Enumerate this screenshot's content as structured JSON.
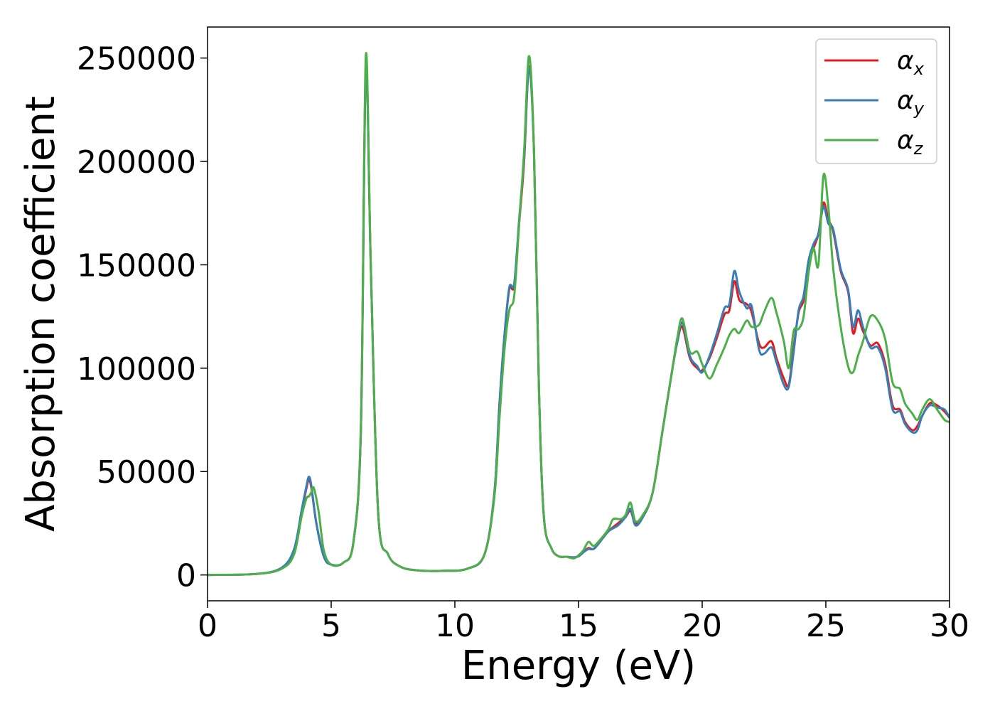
{
  "chart_data": {
    "type": "line",
    "xlabel": "Energy (eV)",
    "ylabel": "Absorption coefficient",
    "xlim": [
      0,
      30
    ],
    "ylim": [
      -12500,
      265000
    ],
    "xticks": [
      0,
      5,
      10,
      15,
      20,
      25,
      30
    ],
    "yticks": [
      0,
      50000,
      100000,
      150000,
      200000,
      250000
    ],
    "grid": false,
    "legend_position": "top-right",
    "series": [
      {
        "name": "α",
        "name_sub": "x",
        "color": "#e41a1c",
        "x": [
          0,
          2,
          3,
          3.5,
          3.8,
          4.0,
          4.1,
          4.2,
          4.4,
          4.7,
          5.0,
          5.5,
          5.9,
          6.2,
          6.4,
          6.6,
          6.9,
          7.3,
          7.8,
          8.5,
          9.5,
          10.5,
          11.2,
          11.6,
          11.8,
          12.0,
          12.2,
          12.4,
          12.6,
          12.8,
          13.0,
          13.2,
          13.4,
          13.6,
          13.9,
          14.2,
          14.5,
          14.8,
          15.0,
          15.2,
          15.4,
          15.6,
          15.8,
          16.2,
          16.6,
          16.9,
          17.1,
          17.3,
          17.6,
          18.0,
          18.4,
          18.8,
          19.0,
          19.2,
          19.5,
          19.8,
          20.0,
          20.3,
          20.6,
          20.9,
          21.1,
          21.3,
          21.5,
          21.8,
          22.0,
          22.3,
          22.5,
          22.8,
          23.0,
          23.3,
          23.5,
          23.7,
          23.9,
          24.1,
          24.3,
          24.5,
          24.7,
          24.9,
          25.1,
          25.3,
          25.6,
          25.9,
          26.1,
          26.3,
          26.5,
          26.8,
          27.1,
          27.4,
          27.7,
          28.0,
          28.2,
          28.5,
          28.7,
          28.9,
          29.2,
          29.5,
          29.8,
          30
        ],
        "y": [
          0,
          500,
          3500,
          12000,
          30000,
          42000,
          46000,
          42000,
          25000,
          9000,
          5000,
          6000,
          16000,
          70000,
          246000,
          150000,
          30000,
          10000,
          4000,
          2200,
          2000,
          3000,
          10000,
          40000,
          82000,
          115000,
          138000,
          140000,
          170000,
          200000,
          246000,
          205000,
          90000,
          28000,
          13000,
          9000,
          8800,
          8500,
          9000,
          11000,
          13000,
          12500,
          15000,
          21000,
          25000,
          28000,
          31000,
          25000,
          28000,
          40000,
          70000,
          100000,
          113000,
          120000,
          105000,
          100000,
          99000,
          105000,
          115000,
          126000,
          128000,
          142000,
          133000,
          131000,
          127000,
          112000,
          110000,
          113000,
          105000,
          95000,
          92000,
          110000,
          127000,
          133000,
          150000,
          158000,
          165000,
          180000,
          172000,
          166000,
          147000,
          137000,
          117000,
          124000,
          118000,
          111000,
          112000,
          102000,
          82000,
          80000,
          74000,
          70000,
          72000,
          77000,
          83000,
          82000,
          79000,
          76000
        ]
      },
      {
        "name": "α",
        "name_sub": "y",
        "color": "#377eb8",
        "x": [
          0,
          2,
          3,
          3.5,
          3.8,
          4.0,
          4.1,
          4.2,
          4.4,
          4.7,
          5.0,
          5.5,
          5.9,
          6.2,
          6.4,
          6.6,
          6.9,
          7.3,
          7.8,
          8.5,
          9.5,
          10.5,
          11.2,
          11.6,
          11.8,
          12.0,
          12.2,
          12.4,
          12.6,
          12.8,
          13.0,
          13.2,
          13.4,
          13.6,
          13.9,
          14.2,
          14.5,
          14.8,
          15.0,
          15.2,
          15.4,
          15.6,
          15.8,
          16.2,
          16.6,
          16.9,
          17.1,
          17.3,
          17.6,
          18.0,
          18.4,
          18.8,
          19.0,
          19.2,
          19.5,
          19.8,
          20.0,
          20.3,
          20.6,
          20.9,
          21.1,
          21.3,
          21.5,
          21.8,
          22.0,
          22.3,
          22.5,
          22.8,
          23.0,
          23.3,
          23.5,
          23.7,
          23.9,
          24.1,
          24.3,
          24.5,
          24.7,
          24.9,
          25.1,
          25.3,
          25.6,
          25.9,
          26.1,
          26.3,
          26.5,
          26.8,
          27.1,
          27.4,
          27.7,
          28.0,
          28.2,
          28.5,
          28.7,
          28.9,
          29.2,
          29.5,
          29.8,
          30
        ],
        "y": [
          0,
          500,
          3500,
          12500,
          31000,
          43000,
          47500,
          43000,
          25000,
          9000,
          5000,
          6000,
          16000,
          70000,
          244000,
          150000,
          30000,
          10000,
          4000,
          2200,
          2000,
          3000,
          10000,
          40000,
          82000,
          115000,
          139000,
          141000,
          172000,
          202000,
          245000,
          204000,
          90000,
          28000,
          13000,
          9000,
          8800,
          8500,
          9000,
          11000,
          12500,
          12500,
          15000,
          21000,
          24000,
          28000,
          32000,
          24000,
          28000,
          40000,
          70000,
          100000,
          113000,
          122000,
          106000,
          101000,
          98000,
          106000,
          117000,
          129000,
          131000,
          147000,
          137000,
          129000,
          130000,
          109000,
          107000,
          110000,
          103000,
          92000,
          91000,
          108000,
          128000,
          135000,
          152000,
          160000,
          165000,
          178000,
          170000,
          167000,
          148000,
          138000,
          120000,
          128000,
          120000,
          110000,
          110000,
          100000,
          80000,
          79000,
          73000,
          69000,
          70000,
          77000,
          82000,
          81000,
          80000,
          76000
        ]
      },
      {
        "name": "α",
        "name_sub": "z",
        "color": "#4daf4a",
        "x": [
          0,
          2,
          3,
          3.5,
          3.8,
          4.0,
          4.1,
          4.2,
          4.3,
          4.5,
          4.7,
          5.0,
          5.5,
          5.9,
          6.2,
          6.4,
          6.6,
          6.9,
          7.3,
          7.8,
          8.5,
          9.5,
          10.5,
          11.2,
          11.6,
          11.8,
          12.0,
          12.2,
          12.4,
          12.6,
          12.8,
          13.0,
          13.2,
          13.4,
          13.6,
          13.9,
          14.2,
          14.5,
          14.8,
          15.0,
          15.2,
          15.4,
          15.6,
          15.8,
          16.2,
          16.4,
          16.7,
          16.9,
          17.1,
          17.3,
          17.6,
          18.0,
          18.4,
          18.8,
          19.0,
          19.2,
          19.5,
          19.8,
          20.0,
          20.3,
          20.6,
          20.9,
          21.1,
          21.3,
          21.5,
          21.8,
          22.0,
          22.3,
          22.5,
          22.8,
          23.0,
          23.3,
          23.5,
          23.7,
          23.9,
          24.1,
          24.3,
          24.5,
          24.7,
          24.9,
          25.1,
          25.3,
          25.6,
          25.9,
          26.1,
          26.3,
          26.5,
          26.8,
          27.1,
          27.4,
          27.7,
          28.0,
          28.2,
          28.5,
          28.7,
          28.9,
          29.2,
          29.5,
          29.8,
          30
        ],
        "y": [
          0,
          500,
          3000,
          10000,
          28000,
          37000,
          38000,
          40000,
          42000,
          30000,
          12000,
          5000,
          6000,
          16000,
          72000,
          251000,
          150000,
          30000,
          10000,
          4000,
          2200,
          2000,
          3000,
          10000,
          38000,
          75000,
          108000,
          128000,
          135000,
          170000,
          205000,
          251000,
          205000,
          90000,
          28000,
          13000,
          9000,
          8800,
          8000,
          9500,
          12000,
          16000,
          14000,
          16000,
          22000,
          27000,
          27000,
          29000,
          35000,
          26000,
          29000,
          40000,
          70000,
          100000,
          115000,
          124000,
          108000,
          108000,
          102000,
          95000,
          102000,
          110000,
          116000,
          119000,
          117000,
          123000,
          120000,
          121000,
          127000,
          134000,
          127000,
          113000,
          100000,
          118000,
          119000,
          125000,
          146000,
          158000,
          150000,
          193000,
          178000,
          148000,
          120000,
          101000,
          98000,
          106000,
          113000,
          125000,
          123000,
          114000,
          93000,
          90000,
          83000,
          78000,
          75000,
          80000,
          85000,
          80000,
          75000,
          74000
        ]
      }
    ]
  }
}
